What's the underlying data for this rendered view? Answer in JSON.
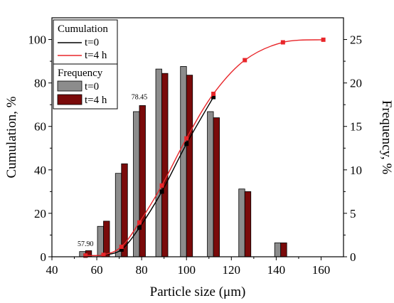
{
  "chart_data": {
    "type": "bar",
    "xlabel": "Particle size (μm)",
    "ylabel_left": "Cumulation, %",
    "ylabel_right": "Frequency, %",
    "xlim": [
      40,
      170
    ],
    "ylim_left": [
      0,
      110
    ],
    "ylim_right": [
      0,
      27.5
    ],
    "x_ticks": [
      40,
      60,
      80,
      100,
      120,
      140,
      160
    ],
    "y_ticks_left": [
      0,
      20,
      40,
      60,
      80,
      100
    ],
    "y_ticks_right": [
      0,
      5,
      10,
      15,
      20,
      25
    ],
    "bar_categories": [
      55,
      63,
      71,
      79,
      89,
      100,
      112,
      126,
      142
    ],
    "frequency_series": [
      {
        "name": "t=0",
        "color": "#8c8c8c",
        "values": [
          0.6,
          3.5,
          9.6,
          16.7,
          21.6,
          21.9,
          16.7,
          7.8,
          1.6
        ]
      },
      {
        "name": "t=4 h",
        "color": "#7a0a0a",
        "values": [
          0.7,
          4.1,
          10.7,
          17.4,
          21.1,
          20.9,
          16.0,
          7.5,
          1.6
        ]
      }
    ],
    "cumulation_series": [
      {
        "name": "t=0",
        "color": "#000000",
        "x": [
          55,
          63,
          71,
          79,
          89,
          100,
          112
        ],
        "y": [
          0.5,
          0.8,
          3.3,
          13.4,
          30.0,
          52.0,
          73.5
        ]
      },
      {
        "name": "t=4 h",
        "color": "#e8262a",
        "x": [
          55,
          63,
          71,
          79,
          89,
          100,
          112,
          126,
          143,
          161
        ],
        "y": [
          0.6,
          0.9,
          4.6,
          15.8,
          32.8,
          54.5,
          75.0,
          90.5,
          98.7,
          99.9
        ]
      }
    ],
    "annotations": [
      {
        "text": "57.90",
        "x": 55,
        "y_right": 0.8
      },
      {
        "text": "78.45",
        "x": 79,
        "y_right": 17.7
      }
    ],
    "legend": {
      "cumulation_title": "Cumulation",
      "frequency_title": "Frequency",
      "placement": "top-left"
    }
  }
}
